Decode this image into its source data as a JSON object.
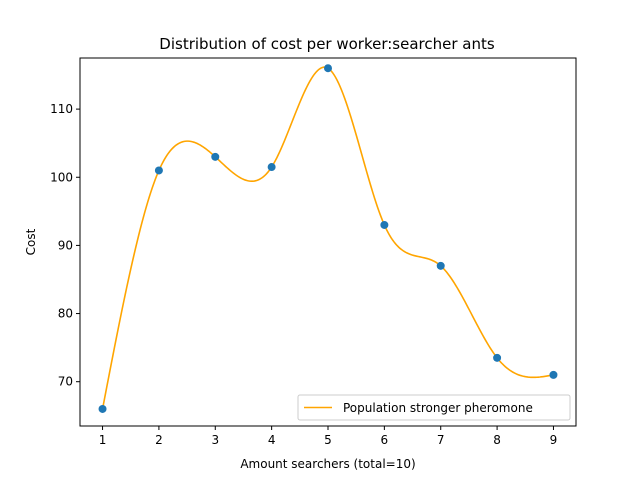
{
  "chart_data": {
    "type": "scatter",
    "title": "Distribution of cost per worker:searcher ants",
    "xlabel": "Amount searchers (total=10)",
    "ylabel": "Cost",
    "xlim": [
      0.6,
      9.4
    ],
    "ylim": [
      63.5,
      117.5
    ],
    "x_ticks": [
      1,
      2,
      3,
      4,
      5,
      6,
      7,
      8,
      9
    ],
    "y_ticks": [
      70,
      80,
      90,
      100,
      110
    ],
    "grid": false,
    "legend_position": "lower-right",
    "points": {
      "color": "#1f77b4",
      "x": [
        1,
        2,
        3,
        4,
        5,
        6,
        7,
        8,
        9
      ],
      "y": [
        66,
        101,
        103,
        101.5,
        116,
        93,
        87,
        73.5,
        71
      ]
    },
    "series": [
      {
        "name": "Population stronger pheromone",
        "color": "#ffa500",
        "style": "smooth-line",
        "x": [
          1,
          2,
          3,
          4,
          5,
          6,
          7,
          8,
          9
        ],
        "y": [
          66,
          101,
          103,
          101.5,
          116,
          93,
          87,
          73.5,
          71
        ]
      }
    ]
  }
}
